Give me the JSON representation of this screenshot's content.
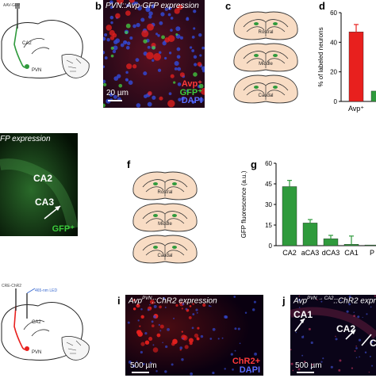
{
  "panels": {
    "a": {
      "inj_label": "AAV-GFP",
      "region_ca2": "CA2",
      "region_pvn": "PVN"
    },
    "b": {
      "letter": "b",
      "title": "PVN::Avp-GFP expression",
      "scale": "20 µm",
      "legend": [
        "Avp⁺",
        "GFP⁺",
        "DAPI"
      ]
    },
    "c": {
      "letter": "c",
      "sections": [
        "Rostral",
        "Middle",
        "Caudal"
      ]
    },
    "d": {
      "letter": "d",
      "ylabel": "% of labeled neurons",
      "xlabels": [
        "Avp⁺",
        "G"
      ]
    },
    "e": {
      "title": "FP expression",
      "ca2": "CA2",
      "ca3": "CA3",
      "gfp": "GFP⁺"
    },
    "f": {
      "letter": "f",
      "sections": [
        "Rostral",
        "Middle",
        "Caudal"
      ]
    },
    "g": {
      "letter": "g",
      "ylabel": "GFP fluorescence (a.u.)"
    },
    "h": {
      "inj_label": "CRE-ChR2",
      "led_label": "465-nm LED",
      "region_ca2": "CA2",
      "region_pvn": "PVN"
    },
    "i": {
      "letter": "i",
      "title_pre": "Avp",
      "title_sup": "PVN",
      "title_post": "::ChR2 expression",
      "scale": "500 µm",
      "legend": [
        "ChR2+",
        "DAPI"
      ]
    },
    "j": {
      "letter": "j",
      "title_pre": "Avp",
      "title_sup": "PVN → CA2",
      "title_post": "::ChR2 express",
      "ca1": "CA1",
      "ca2": "CA2",
      "ca3_partial": "C",
      "scale": "500 µm"
    }
  },
  "colors": {
    "red": "#e8201e",
    "green": "#2f9a3c",
    "blue": "#3348d0"
  },
  "chart_data": [
    {
      "type": "bar",
      "panel": "d",
      "categories": [
        "Avp⁺",
        "G"
      ],
      "values": [
        47,
        7
      ],
      "errors": [
        5,
        0
      ],
      "ylabel": "% of labeled neurons",
      "ylim": [
        0,
        60
      ],
      "yticks": [
        0,
        20,
        40,
        60
      ],
      "colors": [
        "#e8201e",
        "#2f9a3c"
      ]
    },
    {
      "type": "bar",
      "panel": "g",
      "categories": [
        "CA2",
        "aCA3",
        "dCA3",
        "CA1",
        "P"
      ],
      "values": [
        43,
        16.5,
        5,
        1,
        0.5
      ],
      "errors": [
        4.5,
        2.5,
        2.5,
        6,
        0
      ],
      "ylabel": "GFP fluorescence (a.u.)",
      "ylim": [
        0,
        60
      ],
      "yticks": [
        0,
        15,
        30,
        45,
        60
      ],
      "color": "#2f9a3c"
    }
  ]
}
